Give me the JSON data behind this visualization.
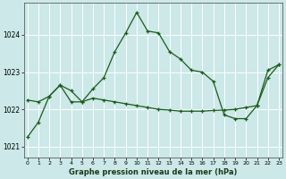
{
  "title": "Graphe pression niveau de la mer (hPa)",
  "background_color": "#cce8e8",
  "grid_color": "#ffffff",
  "line_color": "#1a5c1a",
  "xlim": [
    -0.3,
    23.3
  ],
  "ylim": [
    1020.7,
    1024.85
  ],
  "yticks": [
    1021,
    1022,
    1023,
    1024
  ],
  "xticks": [
    0,
    1,
    2,
    3,
    4,
    5,
    6,
    7,
    8,
    9,
    10,
    11,
    12,
    13,
    14,
    15,
    16,
    17,
    18,
    19,
    20,
    21,
    22,
    23
  ],
  "series1_x": [
    0,
    1,
    2,
    3,
    4,
    5,
    6,
    7,
    8,
    9,
    10,
    11,
    12,
    13,
    14,
    15,
    16,
    17,
    18,
    19,
    20,
    21,
    22,
    23
  ],
  "series1_y": [
    1021.25,
    1021.65,
    1022.35,
    1022.65,
    1022.2,
    1022.2,
    1022.55,
    1022.85,
    1023.55,
    1024.05,
    1024.6,
    1024.1,
    1024.05,
    1023.55,
    1023.35,
    1023.05,
    1023.0,
    1022.75,
    1021.85,
    1021.75,
    1021.75,
    1022.1,
    1022.85,
    1023.2
  ],
  "series2_x": [
    0,
    1,
    2,
    3,
    4,
    5,
    6,
    7,
    8,
    9,
    10,
    11,
    12,
    13,
    14,
    15,
    16,
    17,
    18,
    19,
    20,
    21,
    22,
    23
  ],
  "series2_y": [
    1022.25,
    1022.2,
    1022.35,
    1022.65,
    1022.5,
    1022.2,
    1022.3,
    1022.25,
    1022.2,
    1022.15,
    1022.1,
    1022.05,
    1022.0,
    1021.98,
    1021.95,
    1021.95,
    1021.95,
    1021.97,
    1021.98,
    1022.0,
    1022.05,
    1022.1,
    1023.05,
    1023.2
  ]
}
